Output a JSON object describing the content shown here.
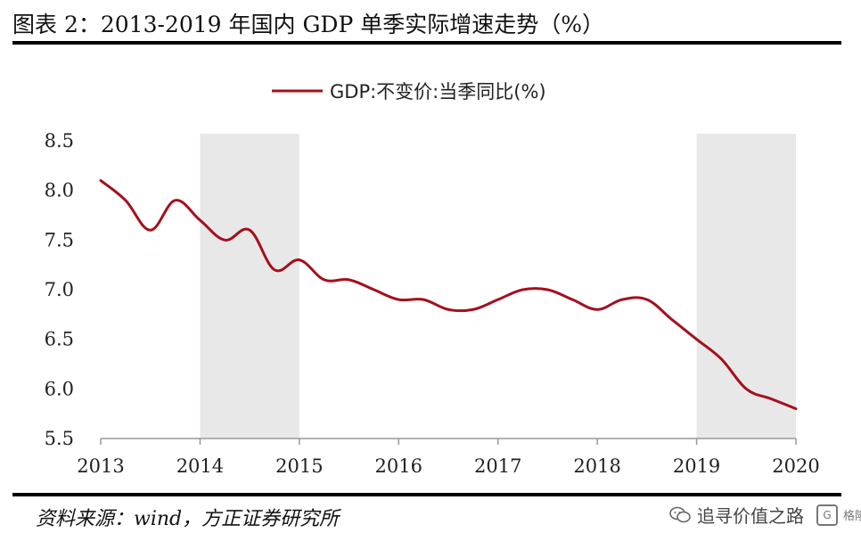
{
  "title": "图表 2：2013-2019 年国内 GDP 单季实际增速走势（%）",
  "source": "资料来源：wind，方正证券研究所",
  "watermark": {
    "text": "追寻价值之路",
    "logo_text": "格隆汇"
  },
  "chart_data": {
    "type": "line",
    "title": "图表 2：2013-2019 年国内 GDP 单季实际增速走势（%）",
    "xlabel": "",
    "ylabel": "",
    "xlim": [
      2013,
      2020
    ],
    "ylim": [
      5.5,
      8.5
    ],
    "x_ticks": [
      "2013",
      "2014",
      "2015",
      "2016",
      "2017",
      "2018",
      "2019",
      "2020"
    ],
    "y_ticks": [
      "5.5",
      "6.0",
      "6.5",
      "7.0",
      "7.5",
      "8.0",
      "8.5"
    ],
    "grid": false,
    "legend_position": "top-center",
    "shaded_ranges": [
      [
        2014,
        2015
      ],
      [
        2019,
        2020
      ]
    ],
    "shade_color": "#e8e8e8",
    "series": [
      {
        "name": "GDP:不变价:当季同比(%)",
        "color": "#a50f1c",
        "x": [
          2013,
          2013.25,
          2013.5,
          2013.75,
          2014,
          2014.25,
          2014.5,
          2014.75,
          2015,
          2015.25,
          2015.5,
          2015.75,
          2016,
          2016.25,
          2016.5,
          2016.75,
          2017,
          2017.25,
          2017.5,
          2017.75,
          2018,
          2018.25,
          2018.5,
          2018.75,
          2019,
          2019.25,
          2019.5,
          2019.75,
          2020
        ],
        "values": [
          8.1,
          7.9,
          7.6,
          7.9,
          7.7,
          7.5,
          7.6,
          7.2,
          7.3,
          7.1,
          7.1,
          7.0,
          6.9,
          6.9,
          6.8,
          6.8,
          6.9,
          7.0,
          7.0,
          6.9,
          6.8,
          6.9,
          6.9,
          6.7,
          6.5,
          6.3,
          6.0,
          5.9,
          5.8
        ]
      }
    ]
  }
}
